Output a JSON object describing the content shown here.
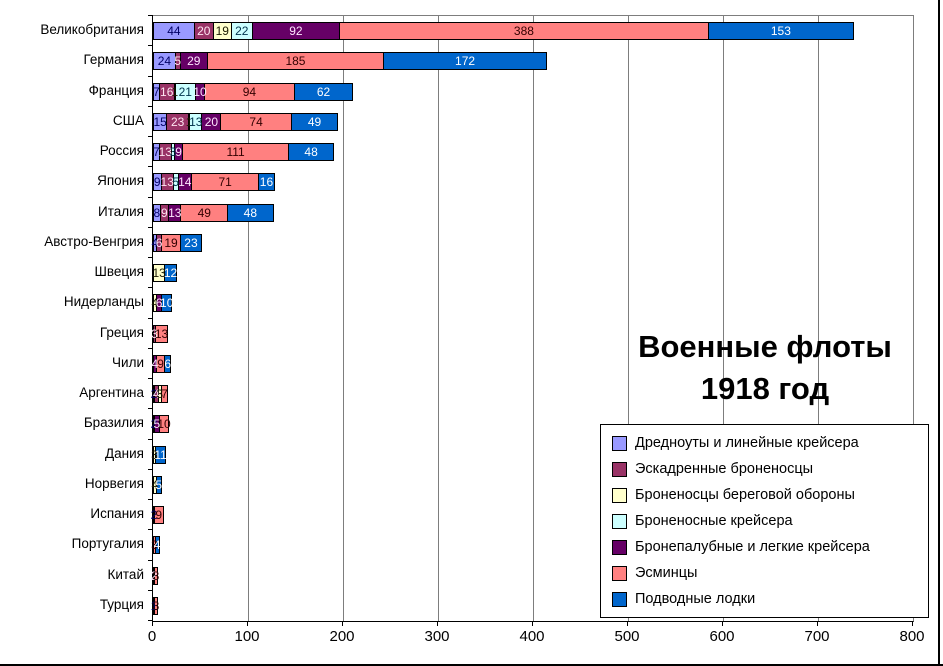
{
  "chart_data": {
    "type": "bar",
    "orientation": "horizontal",
    "stacked": true,
    "title": "Военные флоты 1918 год",
    "title_lines": [
      "Военные флоты",
      "1918 год"
    ],
    "xlabel": "",
    "ylabel": "",
    "xlim": [
      0,
      800
    ],
    "x_ticks": [
      0,
      100,
      200,
      300,
      400,
      500,
      600,
      700,
      800
    ],
    "grid": true,
    "legend_position": "inside-bottom-right",
    "series": [
      {
        "name": "Дредноуты и линейные крейсера",
        "color": "#9999FF",
        "label_color": "#000066"
      },
      {
        "name": "Эскадренные броненосцы",
        "color": "#993366",
        "label_color": "#FFE6F2"
      },
      {
        "name": "Броненосцы береговой обороны",
        "color": "#FFFFCC",
        "label_color": "#1A1A00"
      },
      {
        "name": "Броненосные крейсера",
        "color": "#CCFFFF",
        "label_color": "#00334D"
      },
      {
        "name": "Бронепалубные и легкие крейсера",
        "color": "#660066",
        "label_color": "#FFE6FF"
      },
      {
        "name": "Эсминцы",
        "color": "#FF8080",
        "label_color": "#330000"
      },
      {
        "name": "Подводные лодки",
        "color": "#0066CC",
        "label_color": "#FFFFFF"
      }
    ],
    "categories": [
      "Великобритания",
      "Германия",
      "Франция",
      "США",
      "Россия",
      "Япония",
      "Италия",
      "Австро-Венгрия",
      "Швеция",
      "Нидерланды",
      "Греция",
      "Чили",
      "Аргентина",
      "Бразилия",
      "Дания",
      "Норвегия",
      "Испания",
      "Португалия",
      "Китай",
      "Турция"
    ],
    "values": [
      [
        44,
        20,
        19,
        22,
        92,
        388,
        153
      ],
      [
        24,
        5,
        0,
        0,
        29,
        185,
        172
      ],
      [
        7,
        16,
        1,
        21,
        10,
        94,
        62
      ],
      [
        15,
        23,
        1,
        13,
        20,
        74,
        49
      ],
      [
        7,
        13,
        0,
        3,
        9,
        111,
        48
      ],
      [
        9,
        13,
        0,
        5,
        14,
        71,
        16
      ],
      [
        8,
        9,
        0,
        0,
        13,
        49,
        48
      ],
      [
        4,
        6,
        0,
        0,
        0,
        19,
        23
      ],
      [
        0,
        0,
        13,
        0,
        0,
        0,
        12
      ],
      [
        0,
        0,
        4,
        0,
        6,
        0,
        10
      ],
      [
        0,
        3,
        0,
        0,
        0,
        13,
        0
      ],
      [
        0,
        0,
        0,
        0,
        4,
        9,
        6
      ],
      [
        2,
        4,
        3,
        0,
        0,
        7,
        0
      ],
      [
        2,
        0,
        0,
        0,
        5,
        10,
        0
      ],
      [
        0,
        0,
        3,
        0,
        0,
        0,
        11
      ],
      [
        0,
        0,
        4,
        0,
        0,
        0,
        5
      ],
      [
        2,
        0,
        0,
        0,
        0,
        9,
        0
      ],
      [
        0,
        0,
        0,
        0,
        0,
        3,
        4
      ],
      [
        0,
        0,
        0,
        0,
        2,
        3,
        0
      ],
      [
        1,
        0,
        0,
        0,
        0,
        3,
        0
      ]
    ]
  }
}
